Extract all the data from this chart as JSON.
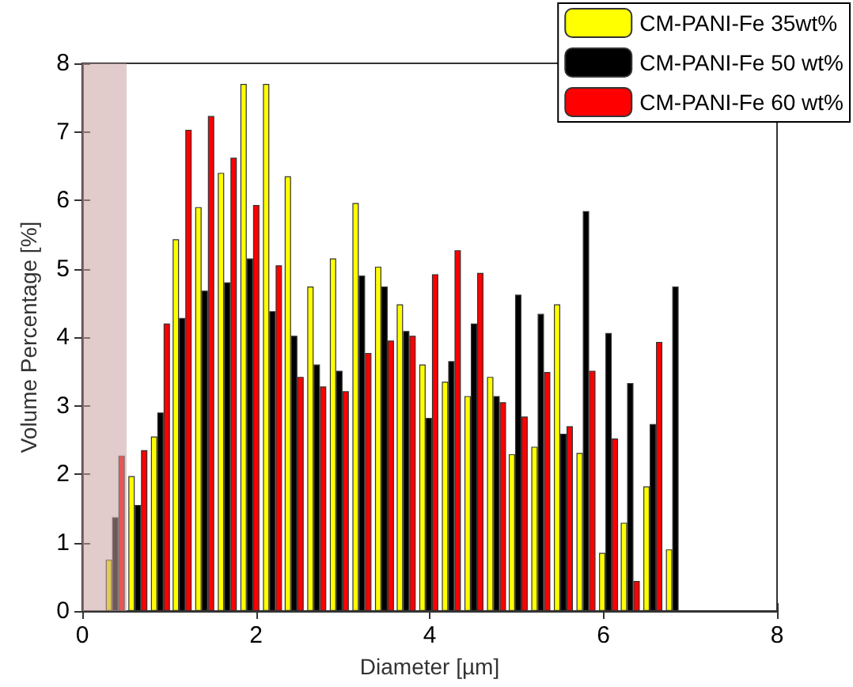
{
  "chart_data": {
    "type": "bar",
    "xlabel": "Diameter [µm]",
    "ylabel": "Volume Percentage [%]",
    "x": [
      0.38,
      0.64,
      0.9,
      1.15,
      1.41,
      1.67,
      1.93,
      2.19,
      2.44,
      2.7,
      2.96,
      3.22,
      3.48,
      3.73,
      3.99,
      4.25,
      4.51,
      4.77,
      5.02,
      5.28,
      5.54,
      5.8,
      6.06,
      6.31,
      6.57,
      6.83
    ],
    "series": [
      {
        "name": "CM-PANI-Fe 35wt%",
        "color": "#ffff00",
        "values": [
          0.75,
          1.97,
          2.55,
          5.43,
          5.9,
          6.4,
          7.7,
          7.7,
          6.35,
          4.74,
          5.15,
          5.96,
          5.03,
          4.48,
          3.6,
          3.35,
          3.14,
          3.42,
          2.29,
          2.4,
          4.48,
          2.31,
          0.85,
          1.29,
          1.82,
          0.9
        ]
      },
      {
        "name": "CM-PANI-Fe 50 wt%",
        "color": "#000000",
        "values": [
          1.37,
          1.55,
          2.9,
          4.28,
          4.68,
          4.8,
          5.15,
          4.38,
          4.02,
          3.6,
          3.51,
          4.9,
          4.74,
          4.09,
          2.82,
          3.65,
          4.2,
          3.14,
          4.62,
          4.34,
          2.59,
          5.84,
          4.06,
          3.33,
          2.73,
          4.74
        ]
      },
      {
        "name": "CM-PANI-Fe 60 wt%",
        "color": "#ff0000",
        "values": [
          2.27,
          2.35,
          4.2,
          7.03,
          7.23,
          6.62,
          5.93,
          5.05,
          3.42,
          3.28,
          3.21,
          3.77,
          3.95,
          4.02,
          4.92,
          5.27,
          4.94,
          3.05,
          2.84,
          3.49,
          2.7,
          3.51,
          2.52,
          0.44,
          3.93,
          null
        ]
      }
    ],
    "xlim": [
      0,
      8
    ],
    "xticks": [
      0,
      2,
      4,
      6,
      8
    ],
    "ylim": [
      0,
      8
    ],
    "yticks": [
      0,
      1,
      2,
      3,
      4,
      5,
      6,
      7,
      8
    ],
    "bands": [
      {
        "axis": "x",
        "from": 0,
        "to": 0.51,
        "color": "#c9a0a0"
      }
    ],
    "grid": false,
    "legend": "top right"
  }
}
